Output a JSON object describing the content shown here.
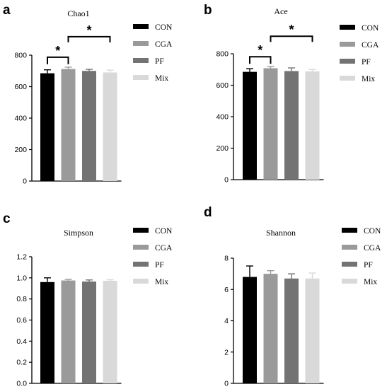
{
  "chart_data": [
    {
      "type": "bar",
      "panel": "a",
      "title": "Chao1",
      "categories": [
        "CON",
        "CGA",
        "PF",
        "Mix"
      ],
      "values": [
        685,
        712,
        700,
        690
      ],
      "errors": [
        22,
        12,
        10,
        15
      ],
      "colors": [
        "#000000",
        "#9a9a9a",
        "#737373",
        "#d9d9d9"
      ],
      "ylim": [
        0,
        800
      ],
      "yticks": [
        "0",
        "200",
        "400",
        "600",
        "800"
      ],
      "xlabel": "",
      "ylabel": "",
      "legend": [
        "CON",
        "CGA",
        "PF",
        "Mix"
      ],
      "legend_position": "right",
      "significance": [
        {
          "from": 0,
          "to": 1,
          "label": "*"
        },
        {
          "from": 1,
          "to": 3,
          "label": "*"
        }
      ]
    },
    {
      "type": "bar",
      "panel": "b",
      "title": "Ace",
      "categories": [
        "CON",
        "CGA",
        "PF",
        "Mix"
      ],
      "values": [
        685,
        708,
        690,
        688
      ],
      "errors": [
        20,
        10,
        20,
        12
      ],
      "colors": [
        "#000000",
        "#9a9a9a",
        "#737373",
        "#d9d9d9"
      ],
      "ylim": [
        0,
        800
      ],
      "yticks": [
        "0",
        "200",
        "400",
        "600",
        "800"
      ],
      "xlabel": "",
      "ylabel": "",
      "legend": [
        "CON",
        "CGA",
        "PF",
        "Mix"
      ],
      "legend_position": "right",
      "significance": [
        {
          "from": 0,
          "to": 1,
          "label": "*"
        },
        {
          "from": 1,
          "to": 3,
          "label": "*"
        }
      ]
    },
    {
      "type": "bar",
      "panel": "c",
      "title": "Simpson",
      "categories": [
        "CON",
        "CGA",
        "PF",
        "Mix"
      ],
      "values": [
        0.96,
        0.975,
        0.965,
        0.972
      ],
      "errors": [
        0.04,
        0.01,
        0.015,
        0.01
      ],
      "colors": [
        "#000000",
        "#9a9a9a",
        "#737373",
        "#d9d9d9"
      ],
      "ylim": [
        0,
        1.2
      ],
      "yticks": [
        "0.0",
        "0.2",
        "0.4",
        "0.6",
        "0.8",
        "1.0",
        "1.2"
      ],
      "xlabel": "",
      "ylabel": "",
      "legend": [
        "CON",
        "CGA",
        "PF",
        "Mix"
      ],
      "legend_position": "right",
      "significance": []
    },
    {
      "type": "bar",
      "panel": "d",
      "title": "Shannon",
      "categories": [
        "CON",
        "CGA",
        "PF",
        "Mix"
      ],
      "values": [
        6.8,
        7.0,
        6.7,
        6.7
      ],
      "errors": [
        0.7,
        0.2,
        0.3,
        0.35
      ],
      "colors": [
        "#000000",
        "#9a9a9a",
        "#737373",
        "#d9d9d9"
      ],
      "ylim": [
        0,
        8
      ],
      "yticks": [
        "0",
        "2",
        "4",
        "6",
        "8"
      ],
      "xlabel": "",
      "ylabel": "",
      "legend": [
        "CON",
        "CGA",
        "PF",
        "Mix"
      ],
      "legend_position": "right",
      "significance": []
    }
  ]
}
